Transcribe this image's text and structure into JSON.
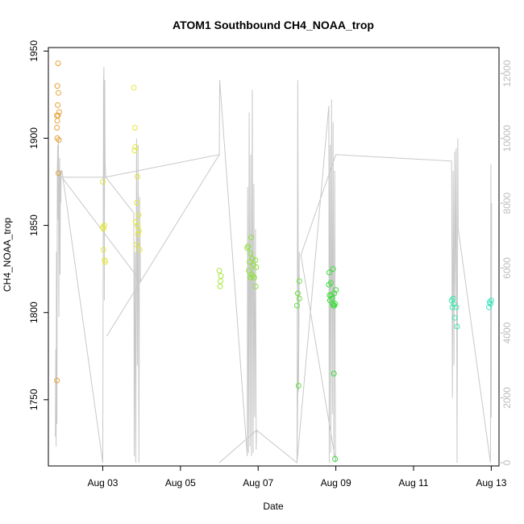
{
  "chart_data": {
    "type": "scatter",
    "title": "ATOM1 Southbound CH4_NOAA_trop",
    "xlabel": "Date",
    "ylabel": "CH4_NOAA_trop",
    "xlim": [
      1.6,
      13.2
    ],
    "ylim": [
      1712,
      1952
    ],
    "y2lim": [
      -100,
      12800
    ],
    "grid": false,
    "x_ticks": [
      {
        "value": 3,
        "label": "Aug 03"
      },
      {
        "value": 5,
        "label": "Aug 05"
      },
      {
        "value": 7,
        "label": "Aug 07"
      },
      {
        "value": 9,
        "label": "Aug 09"
      },
      {
        "value": 11,
        "label": "Aug 11"
      },
      {
        "value": 13,
        "label": "Aug 13"
      }
    ],
    "y_ticks": [
      1750,
      1800,
      1850,
      1900,
      1950
    ],
    "y2_ticks": [
      0,
      2000,
      4000,
      6000,
      8000,
      10000,
      12000
    ],
    "series": [
      {
        "name": "CH4_NOAA_trop",
        "points": [
          {
            "x": 1.82,
            "y": 1761,
            "color": "#e8a13a"
          },
          {
            "x": 1.85,
            "y": 1943,
            "color": "#e8a13a"
          },
          {
            "x": 1.83,
            "y": 1930,
            "color": "#e8a13a"
          },
          {
            "x": 1.86,
            "y": 1926,
            "color": "#e8a13a"
          },
          {
            "x": 1.84,
            "y": 1919,
            "color": "#e8a13a"
          },
          {
            "x": 1.88,
            "y": 1915,
            "color": "#e8a13a"
          },
          {
            "x": 1.82,
            "y": 1913,
            "color": "#e8a13a"
          },
          {
            "x": 1.85,
            "y": 1913,
            "color": "#e8a13a"
          },
          {
            "x": 1.83,
            "y": 1910,
            "color": "#e8a13a"
          },
          {
            "x": 1.82,
            "y": 1906,
            "color": "#e8a13a"
          },
          {
            "x": 1.83,
            "y": 1900,
            "color": "#e8a13a"
          },
          {
            "x": 1.87,
            "y": 1899,
            "color": "#e8a13a"
          },
          {
            "x": 1.86,
            "y": 1880,
            "color": "#e8a13a"
          },
          {
            "x": 3.0,
            "y": 1875,
            "color": "#e4e63a"
          },
          {
            "x": 3.0,
            "y": 1849,
            "color": "#e4e63a"
          },
          {
            "x": 3.02,
            "y": 1848,
            "color": "#e4e63a"
          },
          {
            "x": 3.04,
            "y": 1850,
            "color": "#e4e63a"
          },
          {
            "x": 3.02,
            "y": 1836,
            "color": "#e4e63a"
          },
          {
            "x": 3.05,
            "y": 1830,
            "color": "#e4e63a"
          },
          {
            "x": 3.06,
            "y": 1829,
            "color": "#e4e63a"
          },
          {
            "x": 3.8,
            "y": 1929,
            "color": "#e4e63a"
          },
          {
            "x": 3.83,
            "y": 1906,
            "color": "#e4e63a"
          },
          {
            "x": 3.84,
            "y": 1895,
            "color": "#e4e63a"
          },
          {
            "x": 3.82,
            "y": 1893,
            "color": "#e4e63a"
          },
          {
            "x": 3.89,
            "y": 1878,
            "color": "#e4e63a"
          },
          {
            "x": 3.88,
            "y": 1863,
            "color": "#e4e63a"
          },
          {
            "x": 3.92,
            "y": 1856,
            "color": "#e4e63a"
          },
          {
            "x": 3.85,
            "y": 1852,
            "color": "#e4e63a"
          },
          {
            "x": 3.9,
            "y": 1850,
            "color": "#e4e63a"
          },
          {
            "x": 3.93,
            "y": 1847,
            "color": "#e4e63a"
          },
          {
            "x": 3.91,
            "y": 1845,
            "color": "#e4e63a"
          },
          {
            "x": 3.87,
            "y": 1839,
            "color": "#e4e63a"
          },
          {
            "x": 3.95,
            "y": 1836,
            "color": "#e4e63a"
          },
          {
            "x": 6.0,
            "y": 1824,
            "color": "#a7e53a"
          },
          {
            "x": 6.04,
            "y": 1821,
            "color": "#a7e53a"
          },
          {
            "x": 6.03,
            "y": 1818,
            "color": "#a7e53a"
          },
          {
            "x": 6.02,
            "y": 1815,
            "color": "#a7e53a"
          },
          {
            "x": 6.72,
            "y": 1837,
            "color": "#8fe23a"
          },
          {
            "x": 6.74,
            "y": 1838,
            "color": "#8fe23a"
          },
          {
            "x": 6.82,
            "y": 1843,
            "color": "#8fe23a"
          },
          {
            "x": 6.8,
            "y": 1834,
            "color": "#8fe23a"
          },
          {
            "x": 6.85,
            "y": 1831,
            "color": "#8fe23a"
          },
          {
            "x": 6.93,
            "y": 1830,
            "color": "#8fe23a"
          },
          {
            "x": 6.78,
            "y": 1829,
            "color": "#8fe23a"
          },
          {
            "x": 6.88,
            "y": 1827,
            "color": "#8fe23a"
          },
          {
            "x": 6.95,
            "y": 1826,
            "color": "#8fe23a"
          },
          {
            "x": 6.76,
            "y": 1824,
            "color": "#8fe23a"
          },
          {
            "x": 6.83,
            "y": 1822,
            "color": "#8fe23a"
          },
          {
            "x": 6.86,
            "y": 1821,
            "color": "#8fe23a"
          },
          {
            "x": 6.9,
            "y": 1820,
            "color": "#8fe23a"
          },
          {
            "x": 6.8,
            "y": 1820,
            "color": "#8fe23a"
          },
          {
            "x": 6.94,
            "y": 1815,
            "color": "#8fe23a"
          },
          {
            "x": 8.06,
            "y": 1818,
            "color": "#66e13a"
          },
          {
            "x": 8.02,
            "y": 1811,
            "color": "#66e13a"
          },
          {
            "x": 8.06,
            "y": 1808,
            "color": "#66e13a"
          },
          {
            "x": 8.0,
            "y": 1804,
            "color": "#66e13a"
          },
          {
            "x": 8.04,
            "y": 1758,
            "color": "#66e13a"
          },
          {
            "x": 8.93,
            "y": 1825,
            "color": "#3ade3a"
          },
          {
            "x": 8.83,
            "y": 1823,
            "color": "#3ade3a"
          },
          {
            "x": 8.82,
            "y": 1816,
            "color": "#3ade3a"
          },
          {
            "x": 8.87,
            "y": 1817,
            "color": "#3ade3a"
          },
          {
            "x": 9.0,
            "y": 1813,
            "color": "#3ade3a"
          },
          {
            "x": 8.96,
            "y": 1811,
            "color": "#3ade3a"
          },
          {
            "x": 8.84,
            "y": 1810,
            "color": "#3ade3a"
          },
          {
            "x": 8.88,
            "y": 1810,
            "color": "#3ade3a"
          },
          {
            "x": 8.9,
            "y": 1808,
            "color": "#3ade3a"
          },
          {
            "x": 8.85,
            "y": 1807,
            "color": "#3ade3a"
          },
          {
            "x": 8.92,
            "y": 1805,
            "color": "#3ade3a"
          },
          {
            "x": 8.94,
            "y": 1804,
            "color": "#3ade3a"
          },
          {
            "x": 8.96,
            "y": 1804,
            "color": "#3ade3a"
          },
          {
            "x": 8.98,
            "y": 1805,
            "color": "#3ade3a"
          },
          {
            "x": 8.95,
            "y": 1765,
            "color": "#3ade3a"
          },
          {
            "x": 8.98,
            "y": 1716,
            "color": "#3ade3a"
          },
          {
            "x": 11.98,
            "y": 1807,
            "color": "#3ae6ae"
          },
          {
            "x": 12.02,
            "y": 1808,
            "color": "#3ae6ae"
          },
          {
            "x": 12.04,
            "y": 1805,
            "color": "#3ae6ae"
          },
          {
            "x": 12.0,
            "y": 1803,
            "color": "#3ae6ae"
          },
          {
            "x": 12.1,
            "y": 1803,
            "color": "#3ae6ae"
          },
          {
            "x": 12.06,
            "y": 1797,
            "color": "#3ae6ae"
          },
          {
            "x": 12.12,
            "y": 1792,
            "color": "#3ae6ae"
          },
          {
            "x": 12.96,
            "y": 1806,
            "color": "#3ae6c0"
          },
          {
            "x": 13.0,
            "y": 1807,
            "color": "#3ae6c0"
          },
          {
            "x": 12.98,
            "y": 1805,
            "color": "#3ae6c0"
          },
          {
            "x": 12.94,
            "y": 1803,
            "color": "#3ae6c0"
          }
        ]
      },
      {
        "name": "altitude",
        "axis": "right",
        "color": "#c8c8c8",
        "x": [
          1.78,
          1.79,
          1.8,
          1.81,
          1.82,
          1.83,
          1.84,
          1.85,
          1.86,
          1.87,
          1.88,
          1.89,
          1.9,
          1.91,
          1.92,
          1.93,
          1.95,
          3.0,
          3.02,
          3.03,
          3.04,
          3.05,
          3.06,
          3.08,
          3.8,
          3.81,
          3.83,
          3.85,
          3.87,
          3.89,
          3.91,
          3.93,
          3.95,
          3.97,
          1.95,
          3.06,
          6.0,
          3.1,
          6.0,
          6.01,
          6.72,
          6.73,
          6.75,
          6.77,
          6.79,
          6.81,
          6.83,
          6.85,
          6.87,
          6.89,
          6.91,
          6.93,
          6.95,
          6.96,
          6.0,
          6.96,
          8.0,
          8.02,
          8.04,
          8.06,
          8.0,
          8.82,
          8.83,
          8.85,
          8.87,
          8.89,
          8.91,
          8.93,
          8.95,
          8.97,
          8.99,
          9.0,
          8.1,
          9.0,
          11.98,
          12.0,
          12.02,
          12.04,
          12.06,
          12.08,
          12.1,
          12.12,
          12.14,
          12.15,
          12.98,
          12.99,
          13.0,
          13.01
        ],
        "y": [
          800,
          3500,
          500,
          6500,
          1200,
          9000,
          9800,
          7500,
          10000,
          4500,
          8700,
          9400,
          5800,
          9000,
          8000,
          9000,
          9000,
          0,
          11600,
          12200,
          5000,
          11800,
          9200,
          8800,
          7700,
          200,
          6500,
          0,
          10000,
          3000,
          9800,
          0,
          8200,
          5600,
          8800,
          8800,
          9500,
          3900,
          9500,
          11800,
          200,
          8500,
          300,
          10800,
          500,
          9500,
          200,
          11500,
          300,
          8600,
          1400,
          7200,
          400,
          1000,
          0,
          1000,
          0,
          11800,
          2200,
          6500,
          0,
          11000,
          0,
          9800,
          300,
          11200,
          1500,
          10500,
          200,
          9000,
          400,
          0,
          6400,
          9500,
          9300,
          2000,
          9000,
          3000,
          9600,
          5000,
          9700,
          0,
          10000,
          7200,
          0,
          9200,
          1400,
          8000
        ]
      }
    ]
  }
}
